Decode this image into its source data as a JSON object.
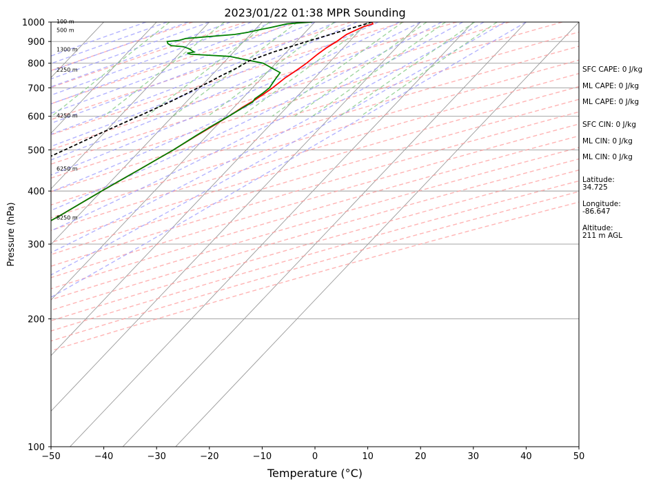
{
  "chart_data": {
    "type": "line",
    "subtype": "skew-t log-p sounding",
    "title": "2023/01/22 01:38 MPR Sounding",
    "xlabel": "Temperature (°C)",
    "ylabel": "Pressure (hPa)",
    "xlim": [
      -50,
      50
    ],
    "ylim": [
      1000,
      100
    ],
    "yscale": "log",
    "x_ticks": [
      "−50",
      "−40",
      "−30",
      "−20",
      "−10",
      "0",
      "10",
      "20",
      "30",
      "40",
      "50"
    ],
    "y_ticks": [
      "1000",
      "900",
      "800",
      "700",
      "600",
      "500",
      "400",
      "300",
      "200",
      "100"
    ],
    "grid": true,
    "series": [
      {
        "key": "temperature",
        "color": "#ff0000",
        "points": [
          [
            1000,
            10.8
          ],
          [
            990,
            11.3
          ],
          [
            975,
            10.0
          ],
          [
            955,
            9.1
          ],
          [
            935,
            8.2
          ],
          [
            900,
            7.6
          ],
          [
            870,
            6.8
          ],
          [
            840,
            6.3
          ],
          [
            800,
            5.8
          ],
          [
            770,
            5.2
          ],
          [
            740,
            4.4
          ],
          [
            700,
            3.8
          ],
          [
            675,
            3.2
          ],
          [
            655,
            2.6
          ],
          [
            630,
            1.6
          ],
          [
            600,
            0.6
          ],
          [
            570,
            -0.6
          ],
          [
            540,
            -2.0
          ],
          [
            500,
            -3.8
          ],
          [
            450,
            -6.7
          ],
          [
            400,
            -10.0
          ],
          [
            350,
            -13.5
          ],
          [
            300,
            -18.1
          ],
          [
            280,
            -20.2
          ],
          [
            265,
            -22.2
          ]
        ]
      },
      {
        "key": "dewpoint",
        "color": "#008000",
        "points": [
          [
            1000,
            -0.5
          ],
          [
            995,
            -3.0
          ],
          [
            990,
            -5.0
          ],
          [
            970,
            -7.5
          ],
          [
            960,
            -9.0
          ],
          [
            945,
            -11.0
          ],
          [
            935,
            -13.0
          ],
          [
            915,
            -21.5
          ],
          [
            905,
            -22.5
          ],
          [
            900,
            -24.5
          ],
          [
            890,
            -24.0
          ],
          [
            880,
            -23.0
          ],
          [
            875,
            -20.5
          ],
          [
            865,
            -19.0
          ],
          [
            850,
            -17.5
          ],
          [
            845,
            -18.6
          ],
          [
            840,
            -17.8
          ],
          [
            830,
            -10.0
          ],
          [
            820,
            -7.5
          ],
          [
            800,
            -2.4
          ],
          [
            760,
            2.5
          ],
          [
            730,
            2.8
          ],
          [
            700,
            3.2
          ],
          [
            680,
            2.9
          ],
          [
            660,
            2.4
          ],
          [
            648,
            2.6
          ],
          [
            630,
            1.8
          ],
          [
            600,
            0.6
          ],
          [
            570,
            -0.8
          ],
          [
            540,
            -2.1
          ],
          [
            500,
            -3.8
          ],
          [
            450,
            -6.7
          ],
          [
            400,
            -10.0
          ],
          [
            350,
            -13.5
          ],
          [
            300,
            -18.1
          ],
          [
            280,
            -20.2
          ],
          [
            270,
            -22.6
          ],
          [
            265,
            -23.5
          ],
          [
            258,
            -22.6
          ]
        ]
      },
      {
        "key": "parcel",
        "color": "#000000",
        "points": [
          [
            1000,
            10.8
          ],
          [
            950,
            6.5
          ],
          [
            900,
            2.0
          ],
          [
            850,
            -2.5
          ],
          [
            810,
            -5.5
          ],
          [
            780,
            -6.5
          ],
          [
            750,
            -8.0
          ],
          [
            700,
            -10.3
          ],
          [
            650,
            -13.0
          ],
          [
            600,
            -16.5
          ],
          [
            550,
            -20.4
          ],
          [
            500,
            -24.4
          ],
          [
            450,
            -28.9
          ],
          [
            400,
            -33.9
          ],
          [
            350,
            -39.5
          ],
          [
            300,
            -45.9
          ],
          [
            265,
            -51.2
          ]
        ]
      }
    ],
    "height_labels": [
      "100 m",
      "500 m",
      "1300 m",
      "2250 m",
      "4250 m",
      "6250 m",
      "8250 m"
    ],
    "height_label_pressures": [
      1000,
      955,
      860,
      770,
      600,
      450,
      345
    ]
  },
  "stats": {
    "sfc_cape": "SFC CAPE: 0 J/kg",
    "ml_cape_1": "ML CAPE: 0 J/kg",
    "ml_cape_2": "ML CAPE: 0 J/kg",
    "sfc_cin": "SFC CIN: 0 J/kg",
    "ml_cin_1": "ML CIN: 0 J/kg",
    "ml_cin_2": "ML CIN: 0 J/kg",
    "latitude_label": "Latitude:",
    "latitude_value": "34.725",
    "longitude_label": "Longitude:",
    "longitude_value": "-86.647",
    "altitude_label": "Altitude:",
    "altitude_value": "211 m AGL"
  },
  "colors": {
    "dry_adiabat": "#ff9999",
    "moist_adiabat": "#9999ff",
    "mixing_ratio": "#88cc88",
    "isotherm": "#999999"
  }
}
